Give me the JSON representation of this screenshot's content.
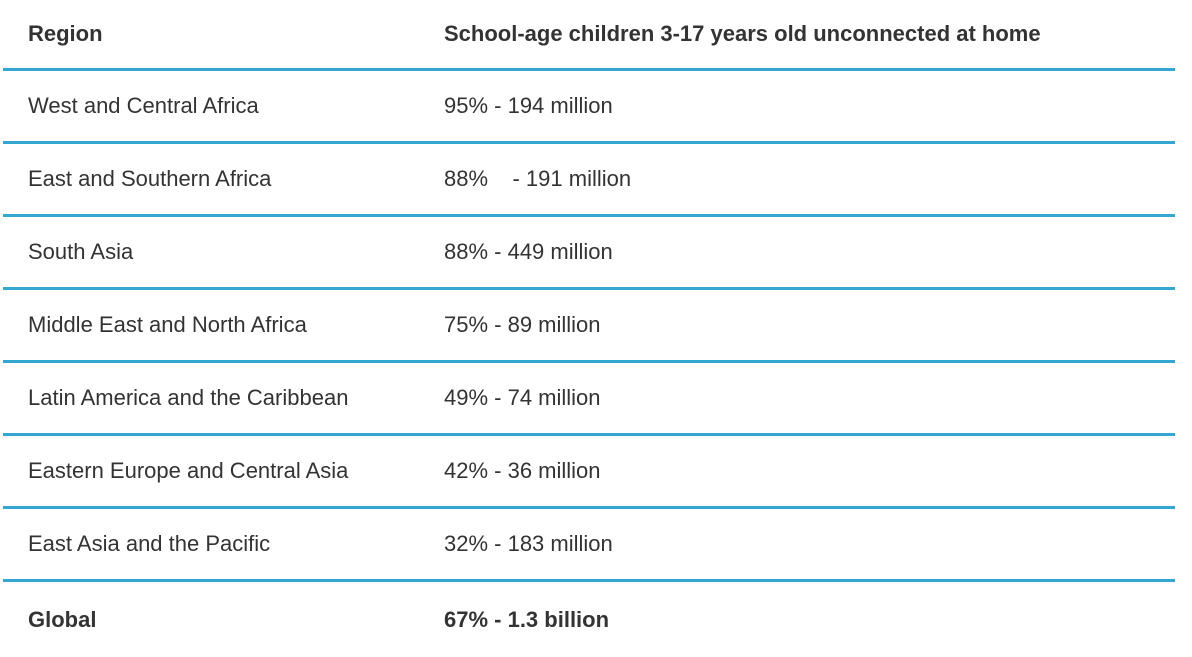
{
  "table": {
    "headers": {
      "region": "Region",
      "value": "School-age children 3-17 years old unconnected at home"
    },
    "rows": [
      {
        "region": "West and Central Africa",
        "value": "95% - 194 million"
      },
      {
        "region": "East and Southern Africa",
        "value": "88%    - 191 million"
      },
      {
        "region": "South Asia",
        "value": "88% - 449 million"
      },
      {
        "region": "Middle East and North Africa",
        "value": "75% - 89 million"
      },
      {
        "region": "Latin America and the Caribbean",
        "value": "49% - 74 million"
      },
      {
        "region": "Eastern Europe and Central Asia",
        "value": "42% - 36 million"
      },
      {
        "region": "East Asia and the Pacific",
        "value": "32% - 183 million"
      }
    ],
    "total": {
      "region": "Global",
      "value": "67% - 1.3 billion"
    }
  },
  "colors": {
    "divider": "#33a6d1",
    "text": "#333333"
  }
}
